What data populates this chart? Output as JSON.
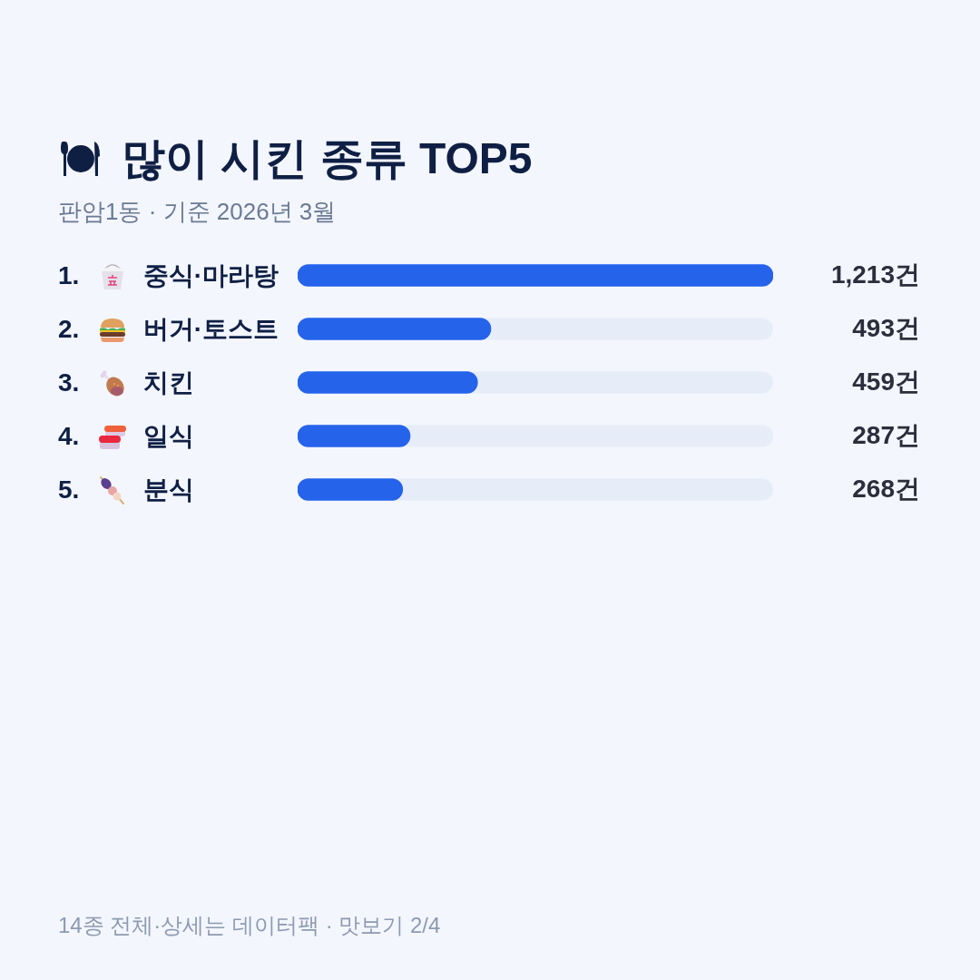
{
  "chart_data": {
    "type": "bar",
    "orientation": "horizontal",
    "title": "많이 시킨 종류 TOP5",
    "subtitle": "판암1동 · 기준 2026년 3월",
    "categories": [
      "1. 중식·마라탕",
      "2. 버거·토스트",
      "3. 치킨",
      "4. 일식",
      "5. 분식"
    ],
    "values": [
      1213,
      493,
      459,
      287,
      268
    ],
    "value_labels": [
      "1,213건",
      "493건",
      "459건",
      "287건",
      "268건"
    ],
    "color": "#2563eb",
    "tick_labels": "y",
    "annotations": [
      "14종 전체·상세는 데이터팩 · 맛보기 2/4"
    ]
  }
}
